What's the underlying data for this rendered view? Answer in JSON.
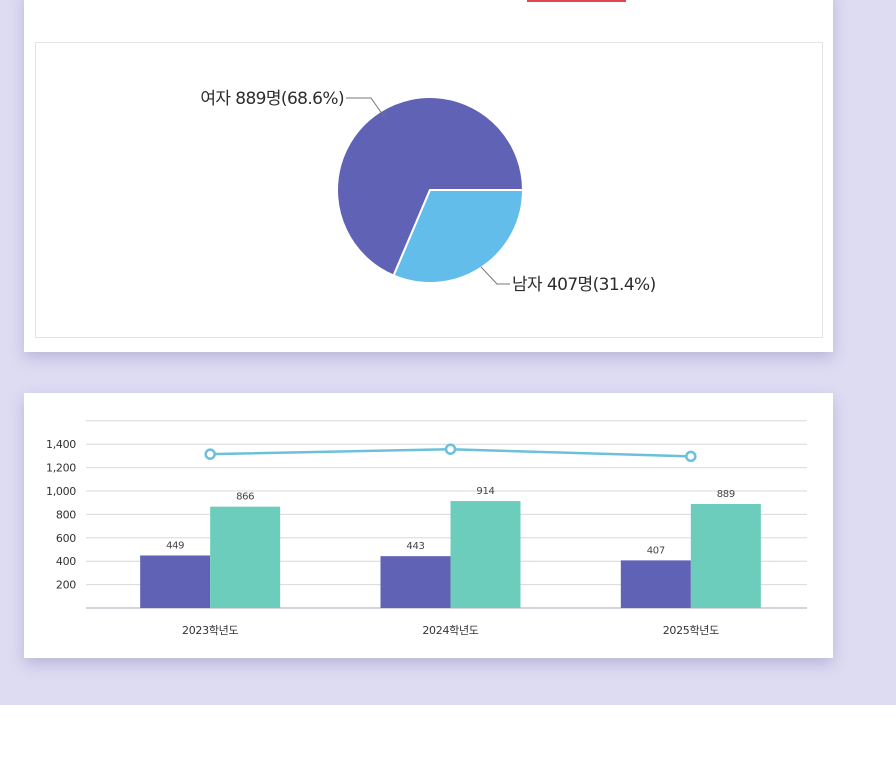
{
  "pie_chart": {
    "type": "pie",
    "slices": [
      {
        "label": "여자 889명(68.6%)",
        "value": 889,
        "percent": 68.6,
        "color": "#5f62b5"
      },
      {
        "label": "남자 407명(31.4%)",
        "value": 407,
        "percent": 31.4,
        "color": "#63bdea"
      }
    ]
  },
  "chart_data": {
    "type": "bar",
    "categories": [
      "2023학년도",
      "2024학년도",
      "2025학년도"
    ],
    "series": [
      {
        "values": [
          449,
          443,
          407
        ],
        "color": "#5f62b5",
        "show_labels": true
      },
      {
        "values": [
          866,
          914,
          889
        ],
        "color": "#6dcdbc",
        "show_labels": true
      },
      {
        "type": "line",
        "values": [
          1315,
          1357,
          1296
        ],
        "color": "#6cc0d9",
        "show_labels": false
      }
    ],
    "y_ticks": [
      "200",
      "400",
      "600",
      "800",
      "1,000",
      "1,200",
      "1,400"
    ],
    "ylim": [
      0,
      1600
    ],
    "grid": true,
    "legend": "none"
  },
  "colors": {
    "background": "#dedcf3",
    "accent_tab": "#e2474b",
    "gridline": "#d8d8de"
  }
}
